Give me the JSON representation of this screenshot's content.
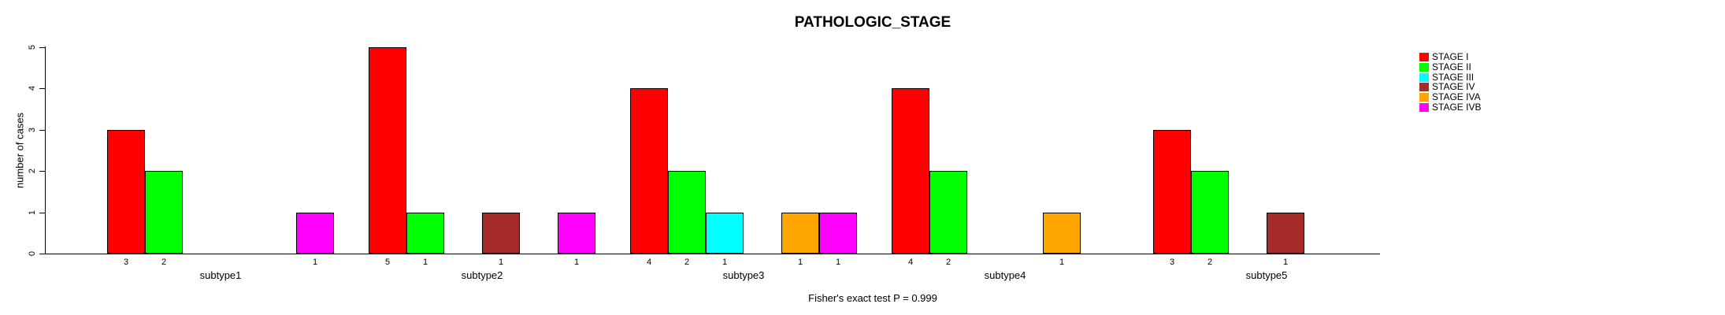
{
  "chart_data": {
    "type": "bar",
    "title": "PATHOLOGIC_STAGE",
    "xlabel": "",
    "ylabel": "number of cases",
    "ylim": [
      0,
      5
    ],
    "yticks": [
      0,
      1,
      2,
      3,
      4,
      5
    ],
    "grid": false,
    "legend_position": "right",
    "annotation": "Fisher's exact test P = 0.999",
    "categories": [
      "subtype1",
      "subtype2",
      "subtype3",
      "subtype4",
      "subtype5"
    ],
    "series": [
      {
        "name": "STAGE I",
        "color": "#FF0000",
        "values": [
          3,
          5,
          4,
          4,
          3
        ]
      },
      {
        "name": "STAGE II",
        "color": "#00FF00",
        "values": [
          2,
          1,
          2,
          2,
          2
        ]
      },
      {
        "name": "STAGE III",
        "color": "#00FFFF",
        "values": [
          0,
          0,
          1,
          0,
          0
        ]
      },
      {
        "name": "STAGE IV",
        "color": "#A52A2A",
        "values": [
          0,
          1,
          0,
          0,
          1
        ]
      },
      {
        "name": "STAGE IVA",
        "color": "#FFA500",
        "values": [
          0,
          0,
          1,
          1,
          0
        ]
      },
      {
        "name": "STAGE IVB",
        "color": "#FF00FF",
        "values": [
          1,
          1,
          1,
          0,
          0
        ]
      }
    ],
    "bar_value_labels_shown_for_nonzero_bars": true
  }
}
